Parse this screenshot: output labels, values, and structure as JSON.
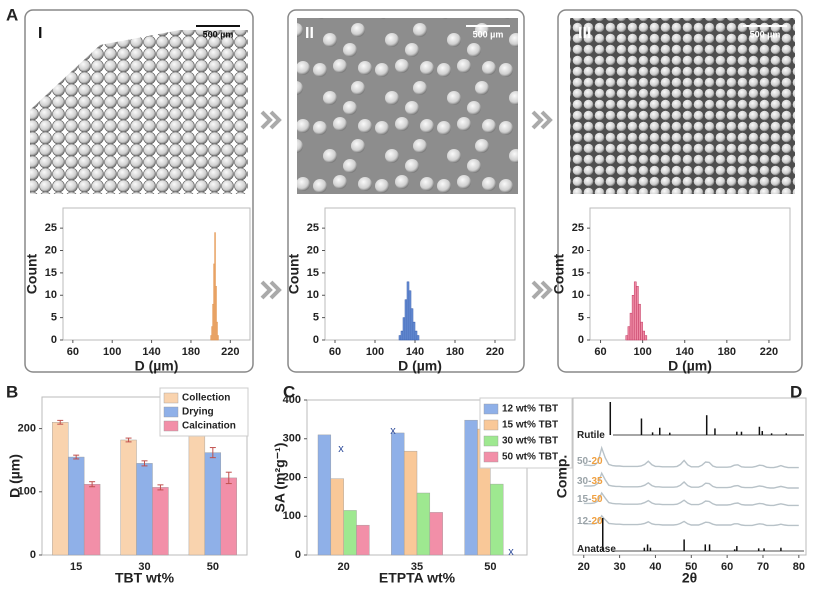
{
  "panels": [
    "A",
    "B",
    "C",
    "D"
  ],
  "chart_data": [
    {
      "type": "histogram",
      "image_label": "I",
      "scale_bar": "500 µm",
      "bins": [
        200,
        201,
        202,
        203,
        204,
        205,
        206,
        207,
        208
      ],
      "counts": [
        1,
        3,
        8,
        17,
        24,
        12,
        4,
        1
      ],
      "color": "#f6c08f",
      "edgecolor": "#e0904a",
      "xlim": [
        50,
        240
      ],
      "ylim": [
        0,
        29.5
      ],
      "xticks": [
        60,
        100,
        140,
        180,
        220
      ],
      "yticks": [
        0,
        5,
        10,
        15,
        20,
        25
      ],
      "xlabel": "D (µm)",
      "ylabel": "Count"
    },
    {
      "type": "histogram",
      "image_label": "II",
      "scale_bar": "500 µm",
      "bins": [
        124,
        126,
        128,
        130,
        132,
        134,
        136,
        138,
        140,
        142,
        144
      ],
      "counts": [
        1,
        2,
        5,
        9,
        13,
        11,
        7,
        4,
        2,
        1
      ],
      "color": "#6f93d8",
      "edgecolor": "#2f56a8",
      "xlim": [
        50,
        240
      ],
      "ylim": [
        0,
        29.5
      ],
      "xticks": [
        60,
        100,
        140,
        180,
        220
      ],
      "yticks": [
        0,
        5,
        10,
        15,
        20,
        25
      ],
      "xlabel": "D (µm)",
      "ylabel": "Count"
    },
    {
      "type": "histogram",
      "image_label": "III",
      "scale_bar": "500 µm",
      "bins": [
        84,
        86,
        88,
        90,
        92,
        94,
        96,
        98,
        100,
        102,
        104
      ],
      "counts": [
        1,
        3,
        6,
        10,
        13,
        12,
        8,
        4,
        2,
        1
      ],
      "color": "#ee8aa4",
      "edgecolor": "#c23a62",
      "xlim": [
        50,
        240
      ],
      "ylim": [
        0,
        29.5
      ],
      "xticks": [
        60,
        100,
        140,
        180,
        220
      ],
      "yticks": [
        0,
        5,
        10,
        15,
        20,
        25
      ],
      "xlabel": "D (µm)",
      "ylabel": "Count"
    },
    {
      "type": "bar",
      "categories": [
        "15",
        "30",
        "50"
      ],
      "series": [
        {
          "name": "Collection",
          "color": "#f9d3ae",
          "values": [
            210,
            182,
            200
          ],
          "errors": [
            3,
            3,
            3
          ]
        },
        {
          "name": "Drying",
          "color": "#8fb0e8",
          "values": [
            155,
            145,
            162
          ],
          "errors": [
            3,
            4,
            8
          ]
        },
        {
          "name": "Calcination",
          "color": "#f28fa8",
          "values": [
            112,
            107,
            122
          ],
          "errors": [
            4,
            4,
            9
          ]
        }
      ],
      "ylim": [
        0,
        250
      ],
      "yticks": [
        0,
        100,
        200
      ],
      "xlabel": "TBT wt%",
      "ylabel": "D (µm)",
      "legend": "upper right"
    },
    {
      "type": "bar",
      "categories": [
        "20",
        "35",
        "50"
      ],
      "series": [
        {
          "name": "12 wt% TBT",
          "color": "#8fb0e8",
          "values": [
            310,
            315,
            348
          ]
        },
        {
          "name": "15 wt% TBT",
          "color": "#f9c898",
          "values": [
            197,
            268,
            325
          ]
        },
        {
          "name": "30 wt% TBT",
          "color": "#9ee890",
          "values": [
            115,
            160,
            183
          ]
        },
        {
          "name": "50 wt% TBT",
          "color": "#f28fa8",
          "values": [
            77,
            110,
            null
          ]
        }
      ],
      "annotations": [
        "x",
        "x",
        "x"
      ],
      "ylim": [
        0,
        400
      ],
      "yticks": [
        0,
        100,
        200,
        300,
        400
      ],
      "xlabel": "ETPTA wt%",
      "ylabel": "SA (m²g⁻¹)",
      "legend": "upper right"
    },
    {
      "type": "line",
      "xlabel": "2θ",
      "ylabel": "Comp.",
      "xlim": [
        17,
        82
      ],
      "xticks": [
        20,
        30,
        40,
        50,
        60,
        70,
        80
      ],
      "x": [
        20,
        21,
        22,
        23,
        24,
        25,
        26,
        27,
        28,
        29,
        30,
        31,
        32,
        33,
        34,
        35,
        36,
        37,
        38,
        39,
        40,
        41,
        42,
        43,
        44,
        45,
        46,
        47,
        48,
        49,
        50,
        51,
        52,
        53,
        54,
        55,
        56,
        57,
        58,
        59,
        60,
        61,
        62,
        63,
        64,
        65,
        66,
        67,
        68,
        69,
        70,
        71,
        72,
        73,
        74,
        75,
        76,
        77,
        78,
        79,
        80
      ],
      "series": [
        {
          "label_parts": [
            "Rutile"
          ],
          "style": "stick",
          "color": "#111111",
          "x": [
            27.4,
            36.1,
            39.2,
            41.2,
            44.0,
            54.3,
            56.6,
            62.7,
            64.0,
            69.0,
            69.8,
            72.4,
            76.5
          ],
          "values": [
            100,
            50,
            8,
            22,
            7,
            60,
            20,
            10,
            10,
            25,
            12,
            5,
            5
          ]
        },
        {
          "label_parts": [
            "50-",
            "20"
          ],
          "style": "line",
          "color": "#b8c2c8",
          "values": [
            12,
            12,
            11,
            12,
            20,
            55,
            30,
            14,
            11,
            10,
            10,
            9,
            9,
            9,
            9,
            9,
            10,
            14,
            22,
            13,
            9,
            9,
            8,
            8,
            8,
            8,
            9,
            14,
            24,
            13,
            8,
            8,
            8,
            12,
            20,
            19,
            10,
            7,
            7,
            7,
            7,
            8,
            12,
            13,
            8,
            7,
            7,
            7,
            9,
            12,
            11,
            7,
            6,
            6,
            8,
            11,
            8,
            6,
            6,
            6,
            6
          ]
        },
        {
          "label_parts": [
            "30-",
            "35"
          ],
          "style": "line",
          "color": "#b8c2c8",
          "values": [
            10,
            10,
            10,
            11,
            17,
            42,
            25,
            12,
            10,
            9,
            9,
            8,
            8,
            8,
            8,
            8,
            9,
            12,
            18,
            11,
            8,
            8,
            7,
            7,
            7,
            7,
            8,
            12,
            20,
            11,
            7,
            7,
            7,
            10,
            17,
            16,
            9,
            6,
            6,
            6,
            6,
            7,
            10,
            11,
            7,
            6,
            6,
            6,
            8,
            10,
            9,
            6,
            5,
            5,
            7,
            9,
            7,
            5,
            5,
            5,
            5
          ]
        },
        {
          "label_parts": [
            "15-",
            "50"
          ],
          "style": "line",
          "color": "#b8c2c8",
          "values": [
            9,
            9,
            9,
            10,
            15,
            35,
            22,
            11,
            9,
            8,
            8,
            7,
            7,
            7,
            7,
            7,
            8,
            11,
            16,
            10,
            7,
            7,
            6,
            6,
            6,
            6,
            7,
            11,
            17,
            10,
            6,
            6,
            6,
            9,
            15,
            14,
            8,
            5,
            5,
            5,
            5,
            6,
            9,
            10,
            6,
            5,
            5,
            5,
            7,
            9,
            8,
            5,
            4,
            4,
            6,
            8,
            6,
            4,
            4,
            4,
            4
          ]
        },
        {
          "label_parts": [
            "12-",
            "20"
          ],
          "style": "line",
          "color": "#b8c2c8",
          "values": [
            8,
            8,
            8,
            8,
            12,
            28,
            18,
            9,
            8,
            7,
            7,
            6,
            6,
            6,
            6,
            6,
            7,
            9,
            13,
            8,
            6,
            6,
            5,
            5,
            5,
            5,
            6,
            9,
            14,
            8,
            5,
            5,
            5,
            8,
            12,
            11,
            7,
            5,
            5,
            5,
            5,
            5,
            8,
            8,
            5,
            4,
            4,
            4,
            6,
            8,
            7,
            4,
            4,
            4,
            5,
            7,
            5,
            4,
            4,
            4,
            4
          ]
        },
        {
          "label_parts": [
            "Anatase"
          ],
          "style": "stick",
          "color": "#111111",
          "x": [
            25.3,
            36.9,
            37.8,
            38.6,
            48.0,
            53.9,
            55.1,
            62.1,
            62.7,
            68.8,
            70.3,
            75.0
          ],
          "values": [
            100,
            10,
            20,
            10,
            35,
            20,
            20,
            5,
            15,
            8,
            8,
            10
          ]
        }
      ]
    }
  ]
}
